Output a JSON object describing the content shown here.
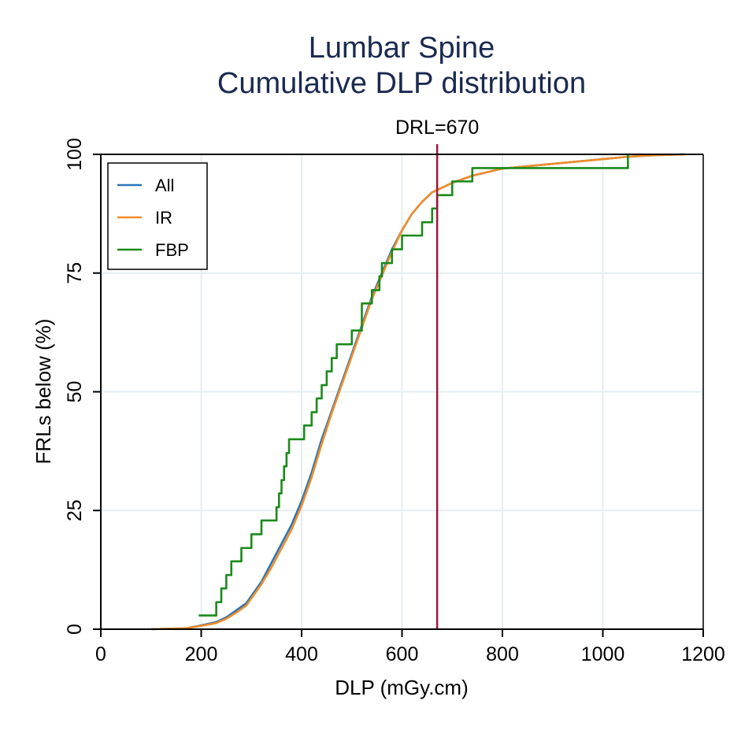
{
  "chart_data": {
    "type": "line",
    "title": "Lumbar Spine",
    "subtitle": "Cumulative DLP distribution",
    "xlabel": "DLP (mGy.cm)",
    "ylabel": "FRLs below (%)",
    "xlim": [
      0,
      1200
    ],
    "ylim": [
      0,
      100
    ],
    "xticks": [
      "0",
      "200",
      "400",
      "600",
      "800",
      "1000",
      "1200"
    ],
    "yticks": [
      "0",
      "25",
      "50",
      "75",
      "100"
    ],
    "annotation": {
      "label": "DRL=670",
      "x": 670,
      "color": "#a0163a"
    },
    "legend": [
      "All",
      "IR",
      "FBP"
    ],
    "series": [
      {
        "name": "All",
        "color": "#2a76b8",
        "step": false,
        "x": [
          100,
          170,
          200,
          230,
          250,
          270,
          290,
          300,
          320,
          340,
          360,
          380,
          400,
          420,
          440,
          460,
          480,
          500,
          520,
          540,
          560,
          580,
          600,
          620,
          640,
          660,
          670,
          700,
          740,
          800,
          900,
          1000,
          1050,
          1100,
          1160
        ],
        "y": [
          0,
          0.2,
          0.8,
          1.5,
          2.5,
          4,
          5.5,
          7,
          10,
          14,
          18,
          22,
          27,
          33,
          40,
          46,
          52,
          58,
          64,
          70,
          75,
          80,
          84,
          87.5,
          90,
          92,
          92.5,
          94,
          95.5,
          97,
          98,
          99,
          99.5,
          99.8,
          100
        ]
      },
      {
        "name": "IR",
        "color": "#f28c28",
        "step": false,
        "x": [
          100,
          170,
          200,
          230,
          250,
          270,
          290,
          300,
          320,
          340,
          360,
          380,
          400,
          420,
          440,
          460,
          480,
          500,
          520,
          540,
          560,
          580,
          600,
          620,
          640,
          660,
          670,
          700,
          740,
          800,
          900,
          1000,
          1050,
          1100,
          1165
        ],
        "y": [
          0,
          0.2,
          0.7,
          1.3,
          2.2,
          3.5,
          5,
          6.5,
          9.5,
          13,
          17,
          21,
          26,
          32,
          39,
          45.5,
          51.5,
          57.5,
          63.5,
          69.5,
          74.5,
          79.5,
          84,
          87.5,
          90,
          92,
          92.5,
          94,
          95.5,
          97,
          98,
          99,
          99.5,
          99.8,
          100
        ]
      },
      {
        "name": "FBP",
        "color": "#1a8a1a",
        "step": true,
        "x": [
          195,
          230,
          240,
          250,
          260,
          280,
          300,
          320,
          350,
          355,
          360,
          365,
          370,
          375,
          405,
          420,
          430,
          440,
          450,
          460,
          470,
          500,
          520,
          540,
          555,
          560,
          580,
          600,
          640,
          660,
          670,
          700,
          740,
          800,
          1050
        ],
        "y": [
          2.9,
          5.7,
          8.6,
          11.4,
          14.3,
          17.1,
          20,
          22.9,
          25.7,
          28.6,
          31.4,
          34.3,
          37.1,
          40,
          42.9,
          45.7,
          48.6,
          51.4,
          54.3,
          57.1,
          60,
          62.9,
          68.6,
          71.4,
          74.3,
          77.1,
          80,
          82.9,
          85.7,
          88.6,
          91.4,
          94.3,
          97.1,
          97.1,
          100
        ]
      }
    ]
  }
}
